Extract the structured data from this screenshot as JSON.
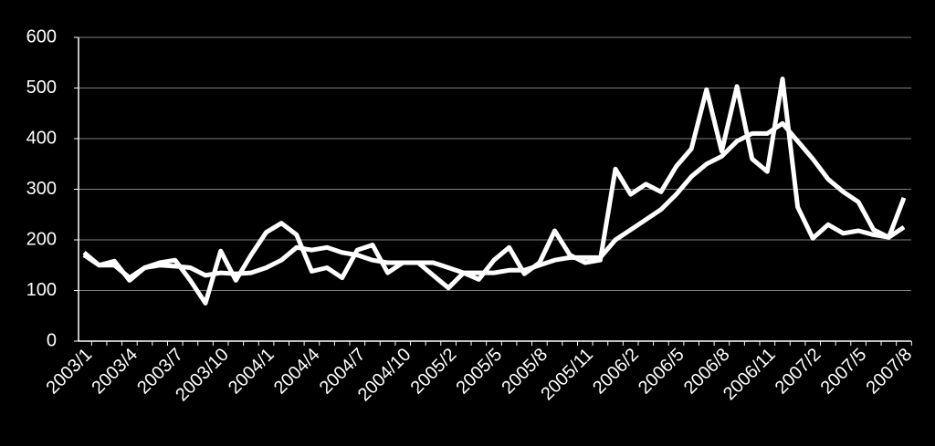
{
  "chart_data": {
    "type": "line",
    "categories": [
      "2003/1",
      null,
      null,
      "2003/4",
      null,
      null,
      "2003/7",
      null,
      null,
      "2003/10",
      null,
      null,
      "2004/1",
      null,
      null,
      "2004/4",
      null,
      null,
      "2004/7",
      null,
      null,
      "2004/10",
      null,
      null,
      "2005/2",
      null,
      null,
      "2005/5",
      null,
      null,
      "2005/8",
      null,
      null,
      "2005/11",
      null,
      null,
      "2006/2",
      null,
      null,
      "2006/5",
      null,
      null,
      "2006/8",
      null,
      null,
      "2006/11",
      null,
      null,
      "2007/2",
      null,
      null,
      "2007/5",
      null,
      null,
      "2007/8"
    ],
    "series": [
      {
        "color": "#ffffff",
        "values": [
          175,
          150,
          158,
          120,
          145,
          155,
          160,
          120,
          75,
          178,
          120,
          170,
          215,
          233,
          210,
          138,
          145,
          125,
          180,
          190,
          135,
          155,
          155,
          130,
          105,
          135,
          122,
          160,
          185,
          133,
          155,
          218,
          170,
          155,
          160,
          340,
          290,
          310,
          295,
          345,
          380,
          497,
          375,
          503,
          360,
          335,
          518,
          265,
          203,
          230,
          213,
          218,
          210,
          205,
          283
        ]
      },
      {
        "color": "#ffffff",
        "values": [
          170,
          150,
          150,
          125,
          145,
          150,
          148,
          145,
          130,
          135,
          133,
          135,
          145,
          160,
          185,
          180,
          185,
          175,
          170,
          160,
          155,
          155,
          155,
          155,
          145,
          135,
          135,
          135,
          140,
          140,
          150,
          160,
          165,
          165,
          165,
          200,
          220,
          240,
          260,
          290,
          325,
          350,
          365,
          395,
          410,
          410,
          430,
          395,
          360,
          320,
          295,
          275,
          220,
          205,
          225
        ]
      }
    ],
    "ylim": [
      0,
      600
    ],
    "yticks": [
      0,
      100,
      200,
      300,
      400,
      500,
      600
    ],
    "grid": true
  }
}
